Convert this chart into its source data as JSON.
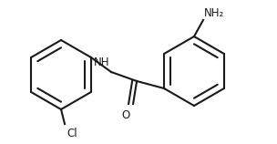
{
  "background_color": "#ffffff",
  "line_color": "#1a1a1a",
  "line_width": 1.5,
  "nh2_label": "NH₂",
  "nh_label": "NH",
  "o_label": "O",
  "cl_label": "Cl",
  "figsize": [
    3.04,
    1.58
  ],
  "dpi": 100
}
